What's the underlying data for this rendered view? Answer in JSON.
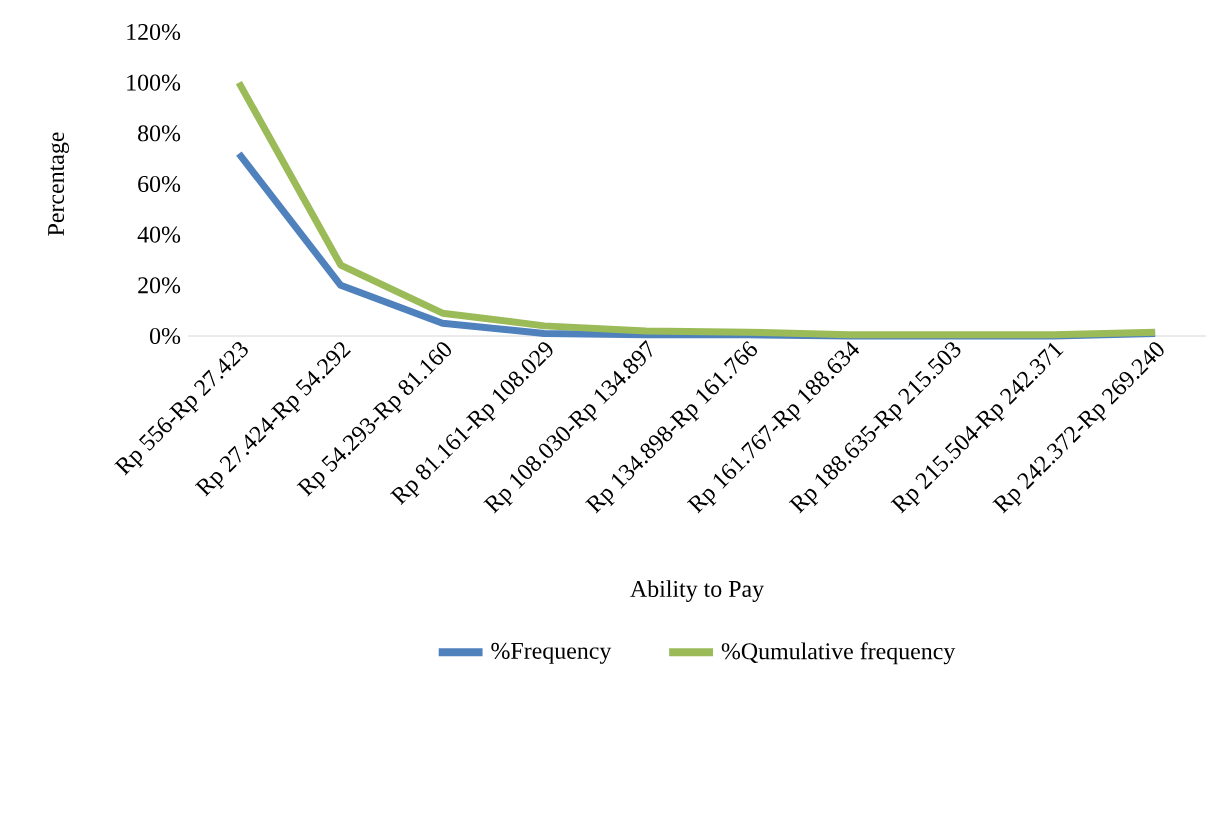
{
  "chart_data": {
    "type": "line",
    "xlabel": "Ability to Pay",
    "ylabel": "Percentage",
    "categories": [
      "Rp 556-Rp 27.423",
      "Rp 27.424-Rp 54.292",
      "Rp 54.293-Rp 81.160",
      "Rp 81.161-Rp 108.029",
      "Rp 108.030-Rp 134.897",
      "Rp 134.898-Rp 161.766",
      "Rp 161.767-Rp 188.634",
      "Rp 188.635-Rp 215.503",
      "Rp 215.504-Rp 242.371",
      "Rp 242.372-Rp 269.240"
    ],
    "series": [
      {
        "name": "%Frequency",
        "color": "#4f81bd",
        "values": [
          72,
          20,
          5,
          1,
          0.5,
          0.5,
          0,
          0,
          0,
          1
        ]
      },
      {
        "name": "%Qumulative frequency",
        "color": "#9bbb59",
        "values": [
          100,
          28,
          9,
          4,
          2,
          1.5,
          0.5,
          0.5,
          0.5,
          1.5
        ]
      }
    ],
    "ylim": [
      0,
      120
    ],
    "yticks": [
      {
        "value": 0,
        "label": "0%"
      },
      {
        "value": 20,
        "label": "20%"
      },
      {
        "value": 40,
        "label": "40%"
      },
      {
        "value": 60,
        "label": "60%"
      },
      {
        "value": 80,
        "label": "80%"
      },
      {
        "value": 100,
        "label": "100%"
      },
      {
        "value": 120,
        "label": "120%"
      }
    ],
    "grid": false,
    "legend": "bottom",
    "marker": "none",
    "line_style": "solid"
  }
}
